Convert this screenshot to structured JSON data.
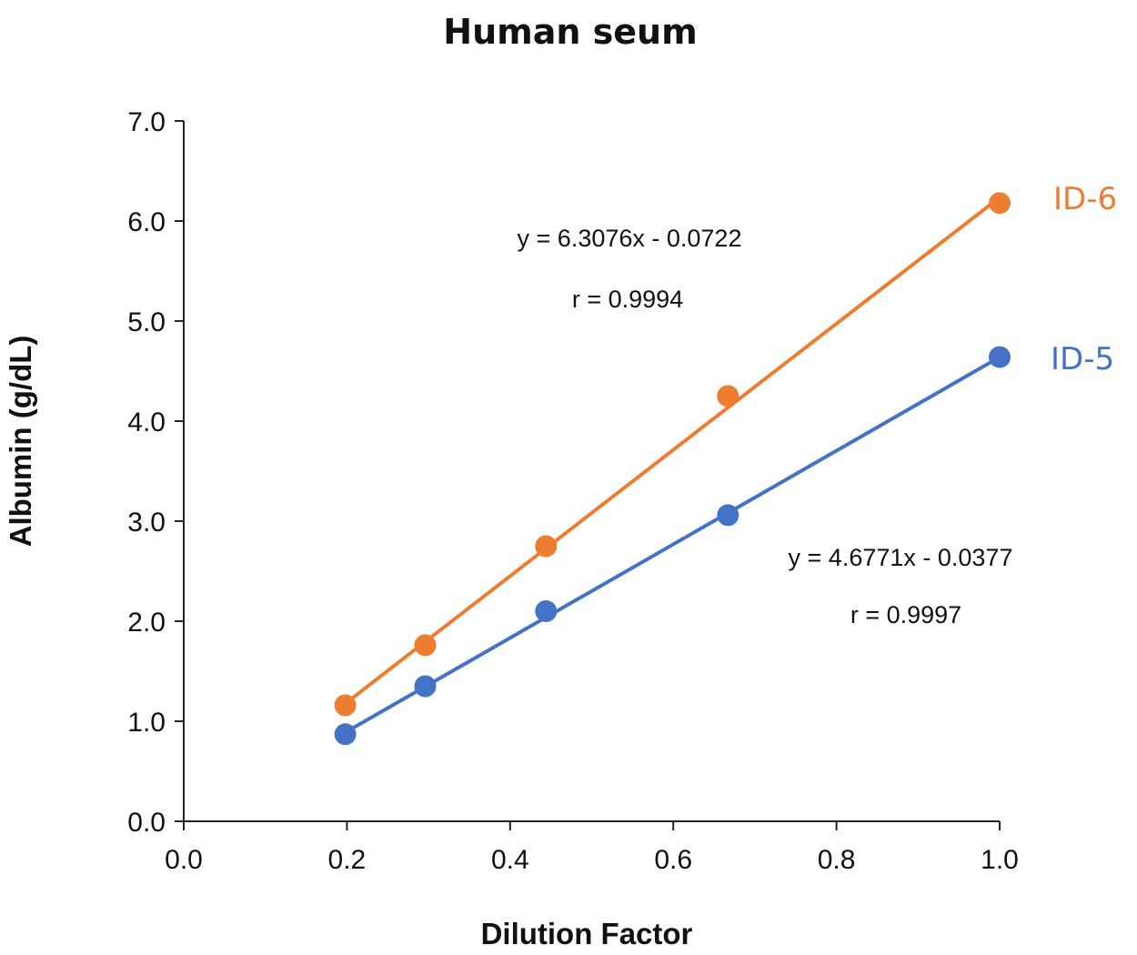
{
  "chart_data": {
    "type": "scatter",
    "title": "Human seum",
    "xlabel": "Dilution Factor",
    "ylabel": "Albumin (g/dL)",
    "xlim": [
      0.0,
      1.0
    ],
    "ylim": [
      0.0,
      7.0
    ],
    "x_ticks": [
      "0.0",
      "0.2",
      "0.4",
      "0.6",
      "0.8",
      "1.0"
    ],
    "y_ticks": [
      "0.0",
      "1.0",
      "2.0",
      "3.0",
      "4.0",
      "5.0",
      "6.0",
      "7.0"
    ],
    "grid": false,
    "legend": "none",
    "series": [
      {
        "name": "ID-6",
        "color": "#ED7D31",
        "x": [
          0.198,
          0.296,
          0.444,
          0.667,
          1.0
        ],
        "y": [
          1.16,
          1.76,
          2.75,
          4.25,
          6.18
        ],
        "trendline": {
          "slope": 6.3076,
          "intercept": -0.0722
        },
        "equation": "y = 6.3076x - 0.0722",
        "r_text": "r = 0.9994"
      },
      {
        "name": "ID-5",
        "color": "#4472C4",
        "x": [
          0.198,
          0.296,
          0.444,
          0.667,
          1.0
        ],
        "y": [
          0.87,
          1.35,
          2.1,
          3.06,
          4.64
        ],
        "trendline": {
          "slope": 4.6771,
          "intercept": -0.0377
        },
        "equation": "y = 4.6771x - 0.0377",
        "r_text": "r = 0.9997"
      }
    ]
  }
}
